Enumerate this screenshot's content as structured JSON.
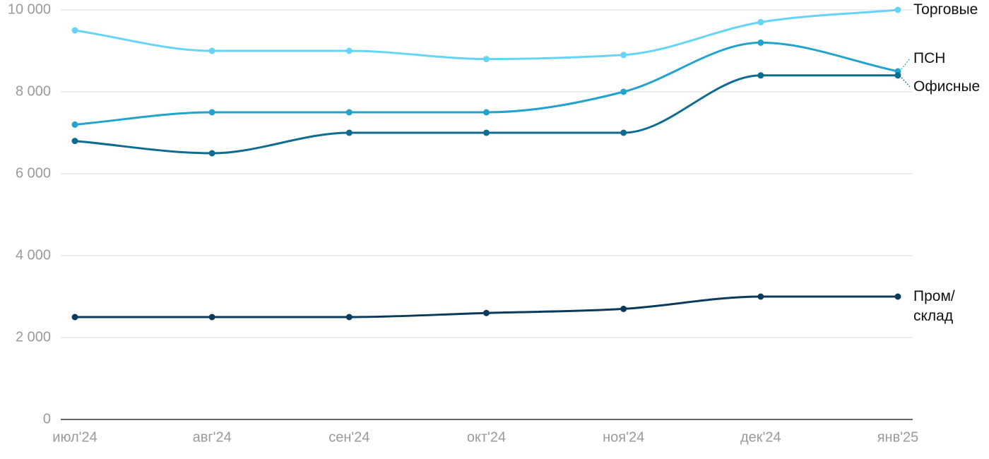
{
  "chart_data": {
    "type": "line",
    "categories": [
      "июл'24",
      "авг'24",
      "сен'24",
      "окт'24",
      "ноя'24",
      "дек'24",
      "янв'25"
    ],
    "series": [
      {
        "name": "Торговые",
        "color": "#66d4f7",
        "values": [
          9500,
          9000,
          9000,
          8800,
          8900,
          9700,
          10000
        ]
      },
      {
        "name": "ПСН",
        "color": "#21a3cc",
        "values": [
          7200,
          7500,
          7500,
          7500,
          8000,
          9200,
          8500
        ]
      },
      {
        "name": "Офисные",
        "color": "#106b91",
        "values": [
          6800,
          6500,
          7000,
          7000,
          7000,
          8400,
          8400
        ]
      },
      {
        "name": "Пром/\nсклад",
        "color": "#0b3b5b",
        "values": [
          2500,
          2500,
          2500,
          2600,
          2700,
          3000,
          3000
        ]
      }
    ],
    "ylim": [
      0,
      10000
    ],
    "yticks": [
      0,
      {
        "value": 2000,
        "label": "2 000"
      },
      {
        "value": 4000,
        "label": "4 000"
      },
      {
        "value": 6000,
        "label": "6 000"
      },
      {
        "value": 8000,
        "label": "8 000"
      },
      {
        "value": 10000,
        "label": "10 000"
      }
    ],
    "grid": true
  }
}
